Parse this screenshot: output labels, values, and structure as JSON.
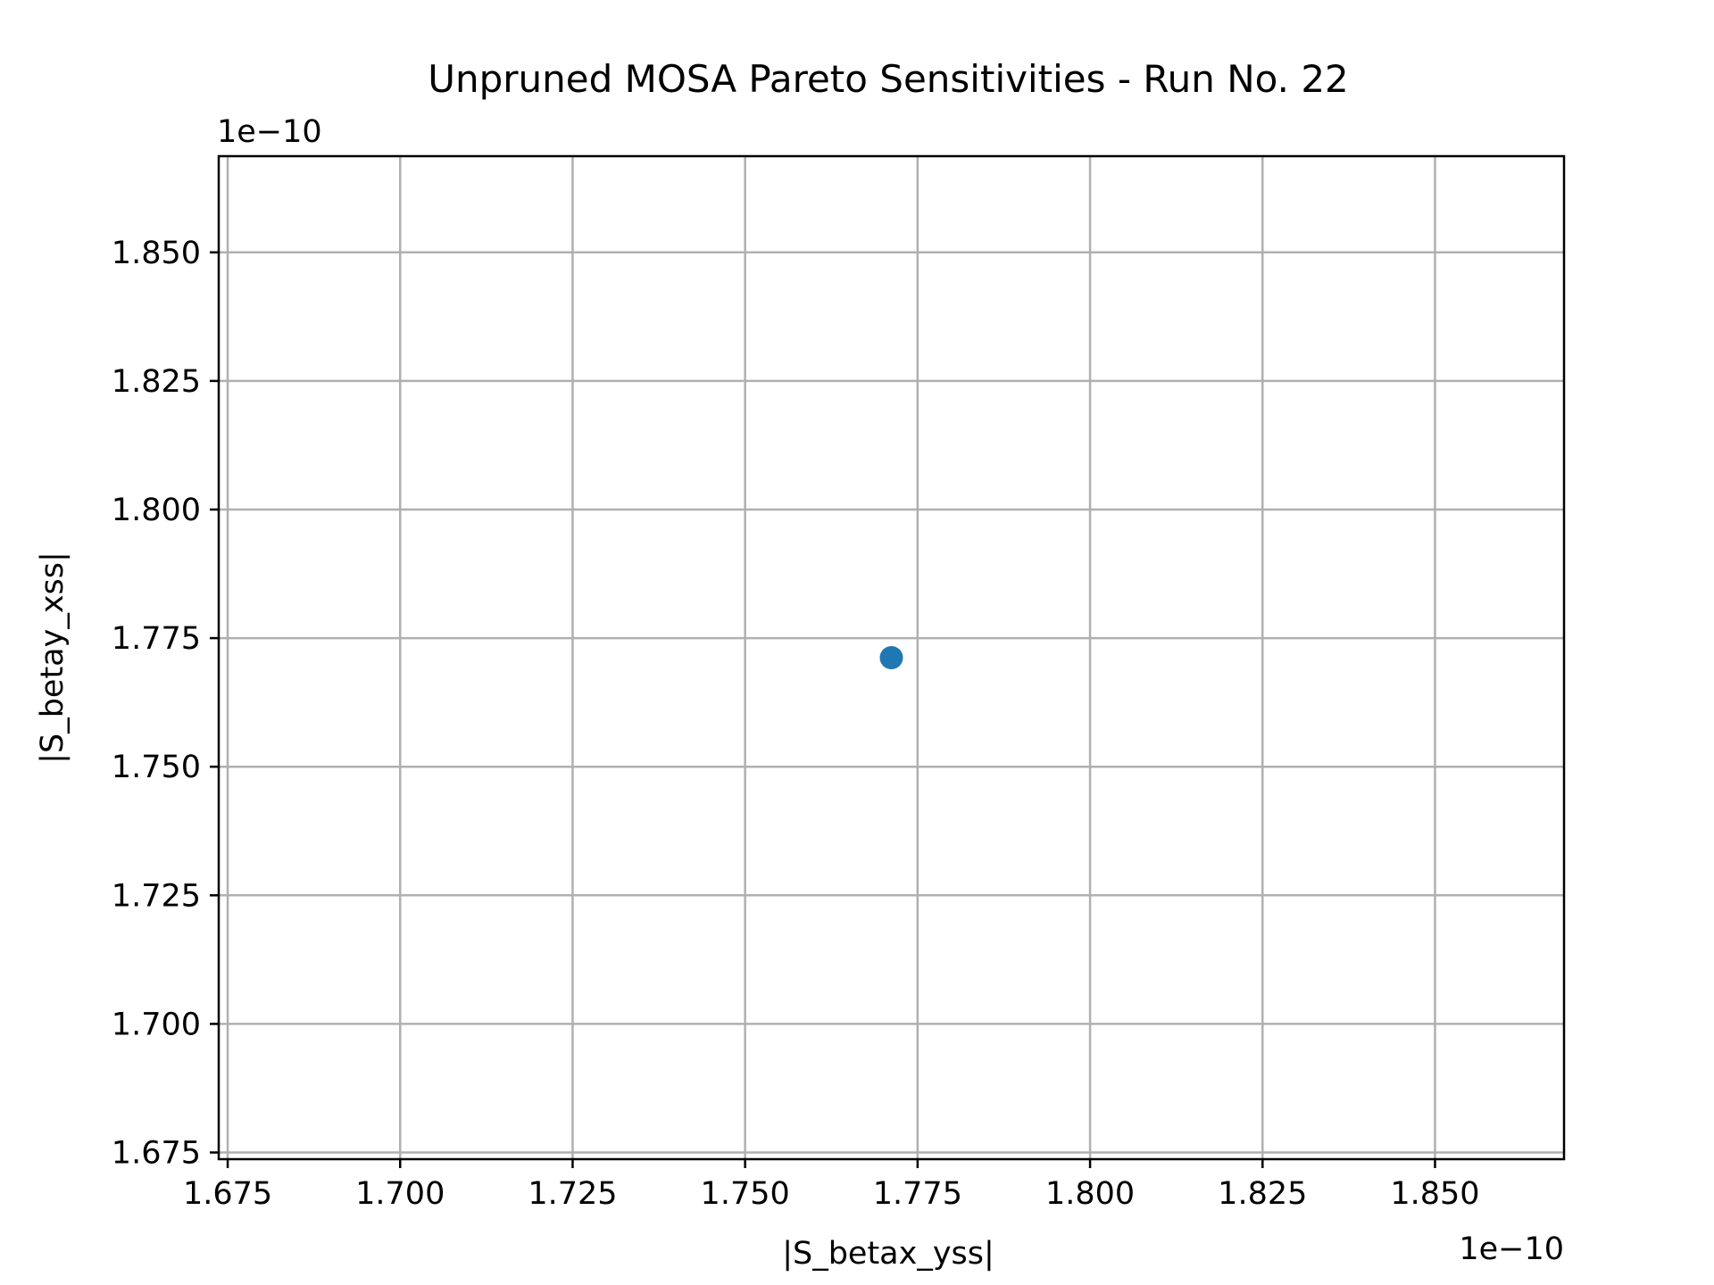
{
  "chart_data": {
    "type": "scatter",
    "title": "Unpruned MOSA Pareto Sensitivities - Run No. 22",
    "xlabel": "|S_betax_yss|",
    "ylabel": "|S_betay_xss|",
    "x_offset_label": "1e−10",
    "y_offset_label": "1e−10",
    "xlim": [
      1.6737,
      1.8687
    ],
    "ylim": [
      1.6737,
      1.8687
    ],
    "x_ticks": [
      1.675,
      1.7,
      1.725,
      1.75,
      1.775,
      1.8,
      1.825,
      1.85
    ],
    "x_tick_labels": [
      "1.675",
      "1.700",
      "1.725",
      "1.750",
      "1.775",
      "1.800",
      "1.825",
      "1.850"
    ],
    "y_ticks": [
      1.675,
      1.7,
      1.725,
      1.75,
      1.775,
      1.8,
      1.825,
      1.85
    ],
    "y_tick_labels": [
      "1.675",
      "1.700",
      "1.725",
      "1.750",
      "1.775",
      "1.800",
      "1.825",
      "1.850"
    ],
    "grid": true,
    "point_color": "#1f77b4",
    "points": [
      {
        "x": 1.7712,
        "y": 1.7712
      }
    ]
  }
}
